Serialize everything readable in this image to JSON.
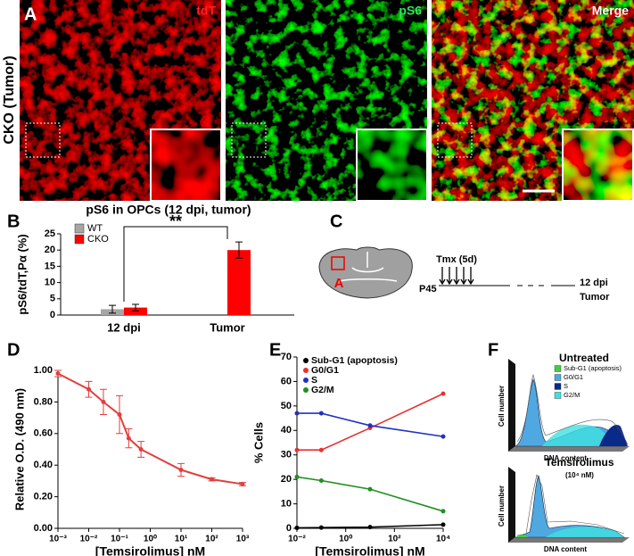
{
  "panel_labels": [
    "A",
    "B",
    "C",
    "D",
    "E",
    "F"
  ],
  "panel_a": {
    "row_label": "CKO (Tumor)",
    "channels": [
      "tdT",
      "pS6",
      "Merge"
    ],
    "channel_colors": [
      "#ff2020",
      "#30e060",
      "#ffffff"
    ]
  },
  "panel_c": {
    "region": "A",
    "treatment": "Tmx (5d)",
    "start": "P45",
    "end": "12 dpi",
    "end_label": "Tumor"
  },
  "panel_f": {
    "plots": [
      {
        "title": "Untreated",
        "y_label": "Cell number",
        "x_label": "DNA content",
        "legend": [
          "Sub-G1 (apoptosis)",
          "G0/G1",
          "S",
          "G2/M"
        ],
        "legend_colors": [
          "#44cc44",
          "#4fa8e0",
          "#0a2a8a",
          "#40e0e0"
        ]
      },
      {
        "title": "Temsirolimus",
        "subtitle": "(10⁴ nM)",
        "y_label": "Cell number",
        "x_label": "DNA content"
      }
    ]
  },
  "chart_data": [
    {
      "type": "bar",
      "title": "pS6 in OPCs (12 dpi, tumor)",
      "y_label": "pS6/tdT,Pα (%)",
      "categories": [
        "12 dpi",
        "Tumor"
      ],
      "series": [
        {
          "name": "WT",
          "color": "#a6a6a6",
          "values": [
            1.8,
            null
          ],
          "errors": [
            1.2,
            null
          ]
        },
        {
          "name": "CKO",
          "color": "#ff0000",
          "values": [
            2.3,
            20
          ],
          "errors": [
            1.0,
            2.5
          ]
        }
      ],
      "ylim": [
        0,
        25
      ],
      "yticks": [
        0,
        5,
        10,
        15,
        20,
        25
      ],
      "annotation": "**"
    },
    {
      "type": "scatter",
      "y_label": "Relative O.D. (490 nm)",
      "x_label": "[Temsirolimus] nM",
      "x": [
        0.001,
        0.01,
        0.03,
        0.1,
        0.2,
        0.5,
        10,
        100,
        1000
      ],
      "series": [
        {
          "color": "#e04040",
          "values": [
            0.98,
            0.88,
            0.8,
            0.72,
            0.57,
            0.5,
            0.37,
            0.31,
            0.28
          ],
          "errors": [
            0.02,
            0.05,
            0.08,
            0.12,
            0.06,
            0.05,
            0.04,
            0.01,
            0.01
          ]
        }
      ],
      "xlog": true,
      "xlim": [
        0.001,
        1000
      ],
      "xticks": [
        {
          "value": 0.001,
          "label": "10⁻³"
        },
        {
          "value": 0.01,
          "label": "10⁻²"
        },
        {
          "value": 0.1,
          "label": "10⁻¹"
        },
        {
          "value": 1,
          "label": "10⁰"
        },
        {
          "value": 10,
          "label": "10¹"
        },
        {
          "value": 100,
          "label": "10²"
        },
        {
          "value": 1000,
          "label": "10³"
        }
      ],
      "ylim": [
        0,
        1
      ],
      "yticks": [
        {
          "value": 0,
          "label": "0.00"
        },
        {
          "value": 0.2,
          "label": "0.20"
        },
        {
          "value": 0.4,
          "label": "0.40"
        },
        {
          "value": 0.6,
          "label": "0.60"
        },
        {
          "value": 0.8,
          "label": "0.80"
        },
        {
          "value": 1,
          "label": "1.00"
        }
      ]
    },
    {
      "type": "line",
      "y_label": "% Cells",
      "x_label": "[Temsirolimus] nM",
      "x": [
        0.01,
        0.1,
        10,
        10000
      ],
      "series": [
        {
          "name": "Sub-G1 (apoptosis)",
          "color": "#000000",
          "values": [
            0.2,
            0.3,
            0.5,
            1.5
          ]
        },
        {
          "name": "G0/G1",
          "color": "#e83030",
          "values": [
            32,
            32,
            41,
            55
          ]
        },
        {
          "name": "S",
          "color": "#2030c0",
          "values": [
            47,
            47,
            42,
            37.5
          ]
        },
        {
          "name": "G2/M",
          "color": "#209020",
          "values": [
            21,
            19.5,
            16,
            7
          ]
        }
      ],
      "xlog": true,
      "xlim": [
        0.01,
        10000
      ],
      "xticks": [
        {
          "value": 0.01,
          "label": "10⁻²"
        },
        {
          "value": 1,
          "label": "10⁰"
        },
        {
          "value": 100,
          "label": "10²"
        },
        {
          "value": 10000,
          "label": "10⁴"
        }
      ],
      "ylim": [
        0,
        70
      ],
      "yticks": [
        0,
        10,
        20,
        30,
        40,
        50,
        60,
        70
      ]
    }
  ]
}
